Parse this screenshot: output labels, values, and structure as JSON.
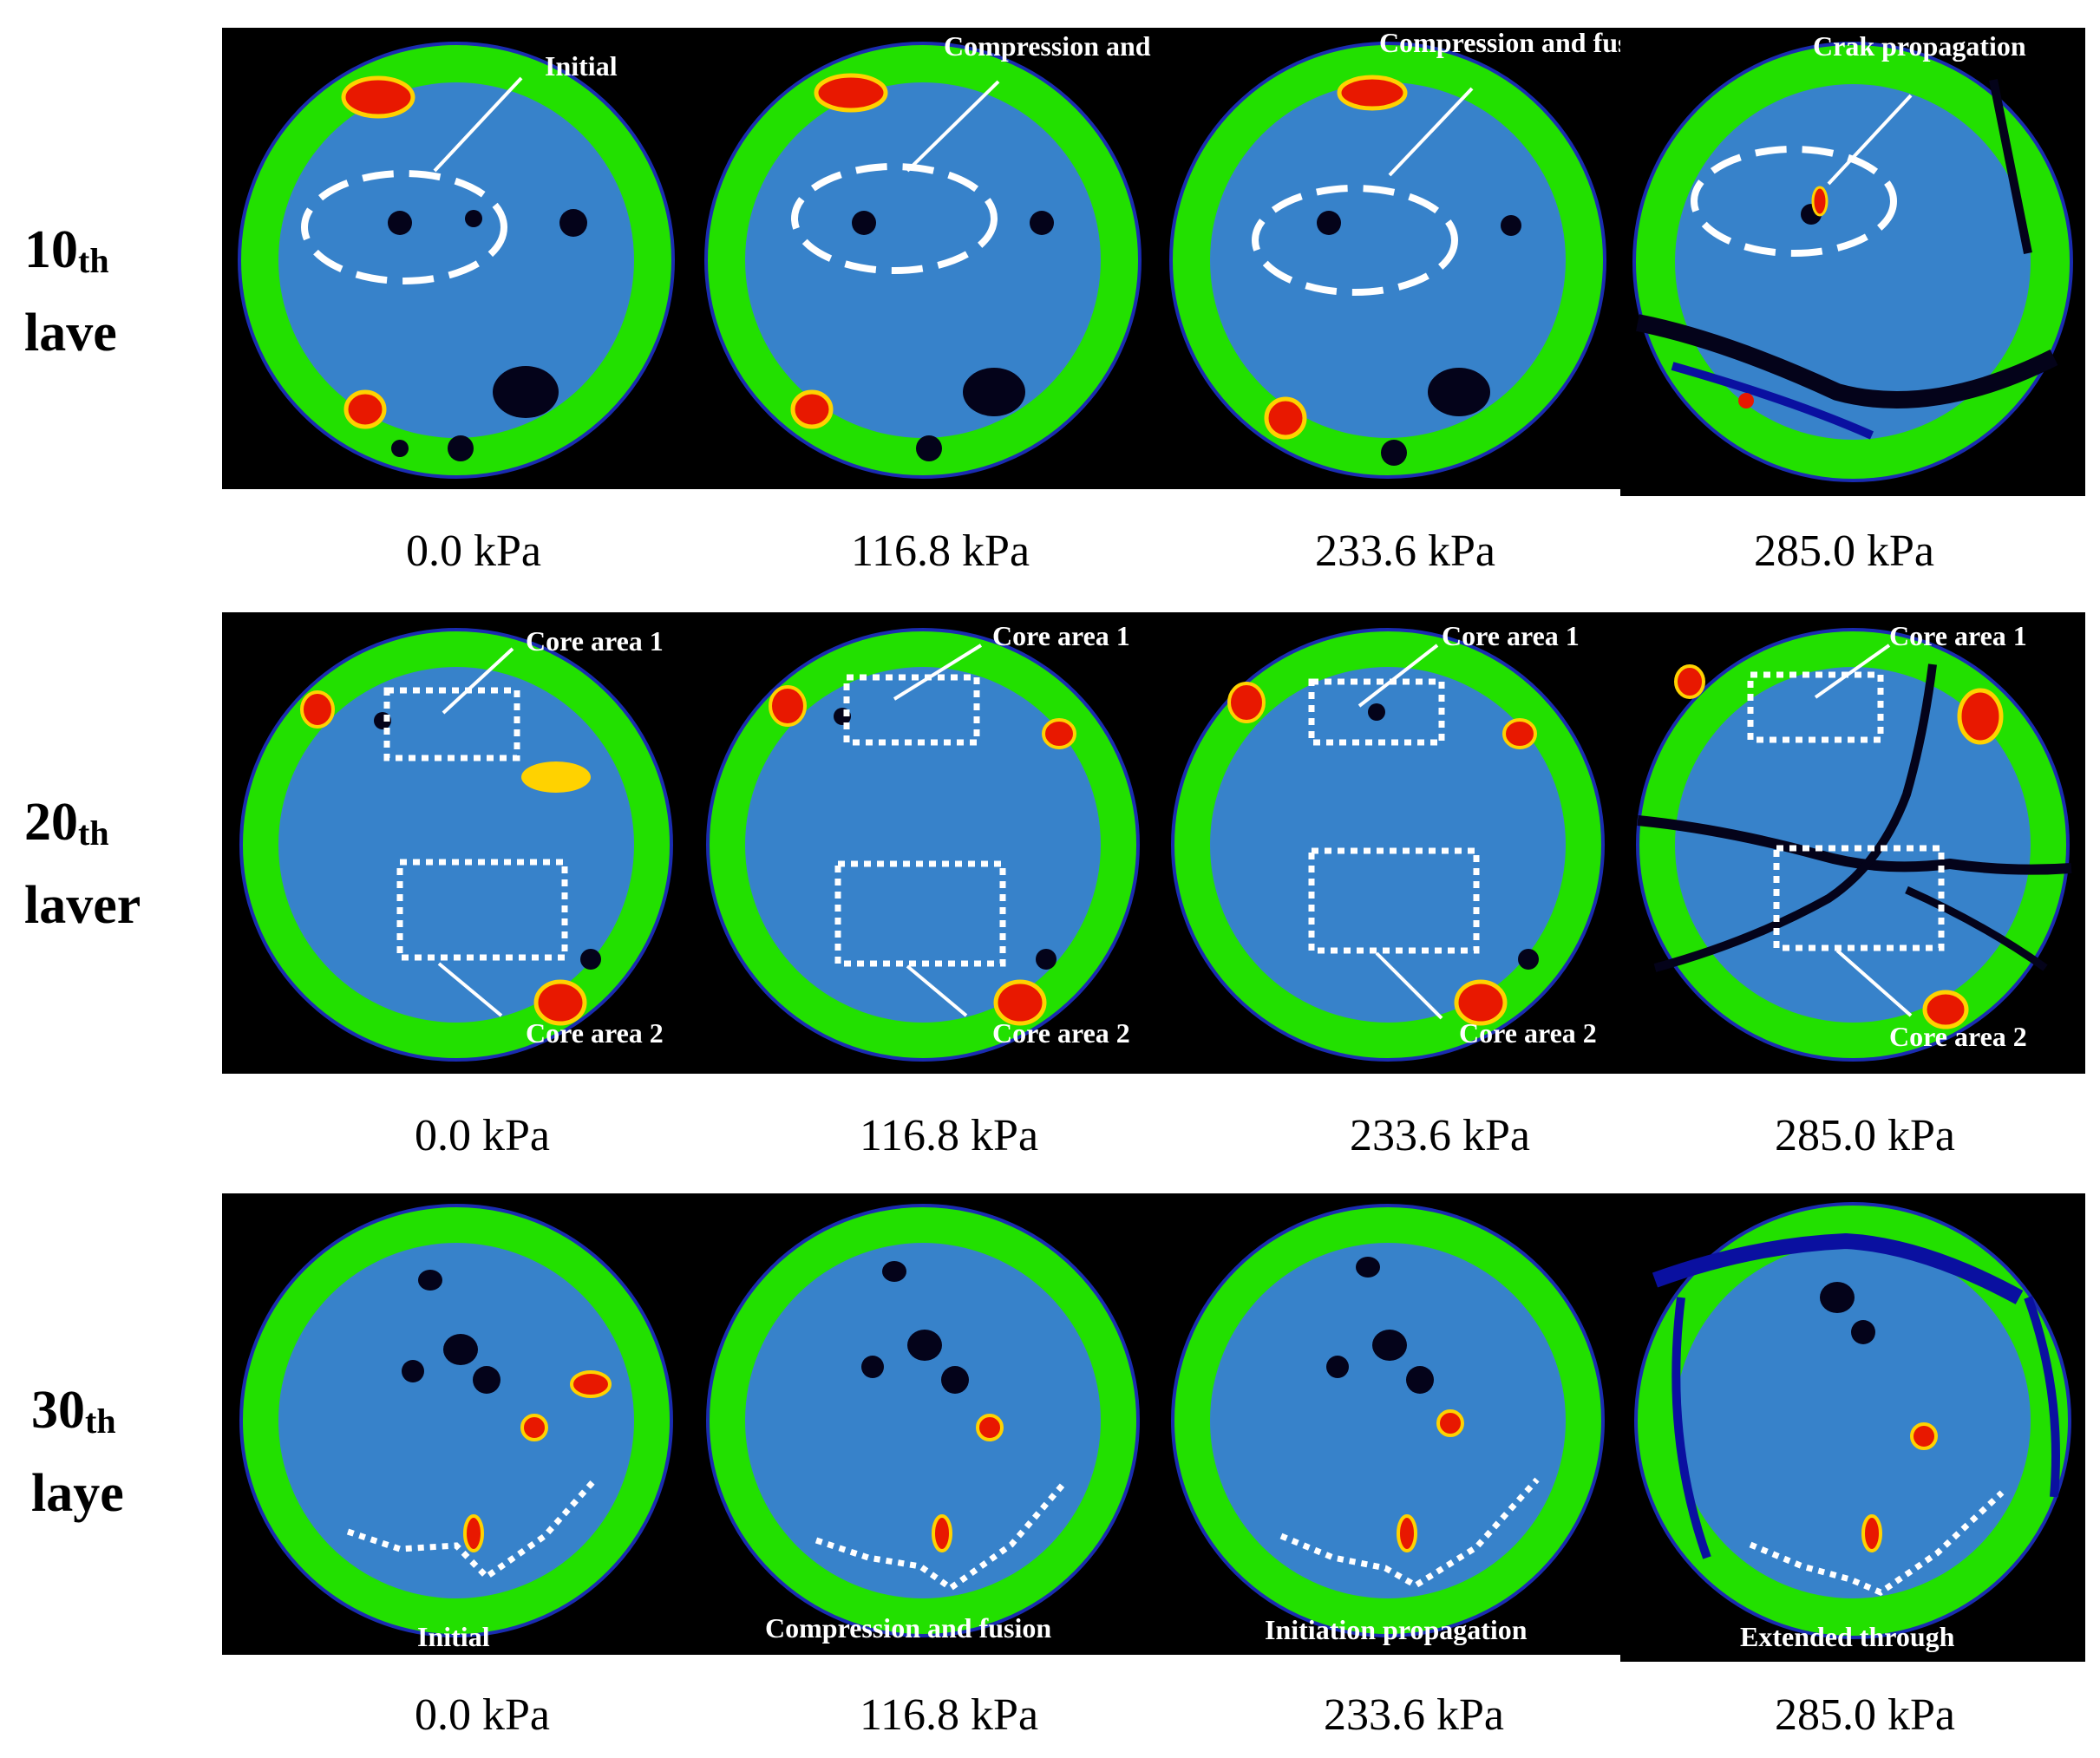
{
  "rows": [
    {
      "ordinal": "10",
      "suffix": "th",
      "word": "lave",
      "panels": [
        {
          "annotation": "Initial"
        },
        {
          "annotation": "Compression and fusion"
        },
        {
          "annotation": "Compression and fusion"
        },
        {
          "annotation": "Crak propagation"
        }
      ],
      "pressures": [
        "0.0 kPa",
        "116.8 kPa",
        "233.6 kPa",
        "285.0 kPa"
      ]
    },
    {
      "ordinal": "20",
      "suffix": "th",
      "word": "laver",
      "core1": "Core area 1",
      "core2": "Core area 2",
      "pressures": [
        "0.0 kPa",
        "116.8 kPa",
        "233.6 kPa",
        "285.0 kPa"
      ]
    },
    {
      "ordinal": "30",
      "suffix": "th",
      "word": "laye",
      "panels": [
        {
          "annotation": "Initial"
        },
        {
          "annotation": "Compression and fusion"
        },
        {
          "annotation": "Initiation propagation"
        },
        {
          "annotation": "Extended through"
        }
      ],
      "pressures": [
        "0.0 kPa",
        "116.8 kPa",
        "233.6 kPa",
        "285.0 kPa"
      ]
    }
  ],
  "colors": {
    "background": "#000000",
    "outer": "#22e000",
    "inner": "#3a78e0",
    "pore": "#04031a",
    "hot": "#e81800",
    "warm": "#ffd200",
    "annotation": "#ffffff"
  }
}
